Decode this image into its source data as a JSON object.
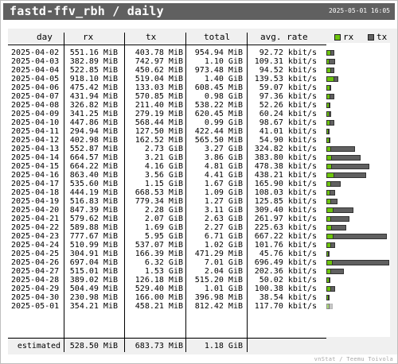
{
  "header": {
    "title": "fastd-ffv_rbh / daily",
    "timestamp": "2025-05-01 16:05"
  },
  "columns": {
    "day": "day",
    "rx": "rx",
    "tx": "tx",
    "total": "total",
    "rate": "avg. rate"
  },
  "legend": {
    "rx_label": "rx",
    "tx_label": "tx",
    "rx_color": "#6cc40c",
    "tx_color": "#606060"
  },
  "rows": [
    {
      "day": "2025-04-02",
      "rx": "551.16 MiB",
      "tx": "403.78 MiB",
      "total": "954.94 MiB",
      "rate": "92.72 kbit/s",
      "rx_mib": 551.16,
      "tx_mib": 403.78
    },
    {
      "day": "2025-04-03",
      "rx": "382.89 MiB",
      "tx": "742.97 MiB",
      "total": "1.10 GiB",
      "rate": "109.31 kbit/s",
      "rx_mib": 382.89,
      "tx_mib": 742.97
    },
    {
      "day": "2025-04-04",
      "rx": "522.85 MiB",
      "tx": "450.62 MiB",
      "total": "973.48 MiB",
      "rate": "94.52 kbit/s",
      "rx_mib": 522.85,
      "tx_mib": 450.62
    },
    {
      "day": "2025-04-05",
      "rx": "918.10 MiB",
      "tx": "519.04 MiB",
      "total": "1.40 GiB",
      "rate": "139.53 kbit/s",
      "rx_mib": 918.1,
      "tx_mib": 519.04
    },
    {
      "day": "2025-04-06",
      "rx": "475.42 MiB",
      "tx": "133.03 MiB",
      "total": "608.45 MiB",
      "rate": "59.07 kbit/s",
      "rx_mib": 475.42,
      "tx_mib": 133.03
    },
    {
      "day": "2025-04-07",
      "rx": "431.94 MiB",
      "tx": "570.85 MiB",
      "total": "0.98 GiB",
      "rate": "97.36 kbit/s",
      "rx_mib": 431.94,
      "tx_mib": 570.85
    },
    {
      "day": "2025-04-08",
      "rx": "326.82 MiB",
      "tx": "211.40 MiB",
      "total": "538.22 MiB",
      "rate": "52.26 kbit/s",
      "rx_mib": 326.82,
      "tx_mib": 211.4
    },
    {
      "day": "2025-04-09",
      "rx": "341.25 MiB",
      "tx": "279.19 MiB",
      "total": "620.45 MiB",
      "rate": "60.24 kbit/s",
      "rx_mib": 341.25,
      "tx_mib": 279.19
    },
    {
      "day": "2025-04-10",
      "rx": "447.86 MiB",
      "tx": "568.44 MiB",
      "total": "0.99 GiB",
      "rate": "98.67 kbit/s",
      "rx_mib": 447.86,
      "tx_mib": 568.44
    },
    {
      "day": "2025-04-11",
      "rx": "294.94 MiB",
      "tx": "127.50 MiB",
      "total": "422.44 MiB",
      "rate": "41.01 kbit/s",
      "rx_mib": 294.94,
      "tx_mib": 127.5
    },
    {
      "day": "2025-04-12",
      "rx": "402.98 MiB",
      "tx": "162.52 MiB",
      "total": "565.50 MiB",
      "rate": "54.90 kbit/s",
      "rx_mib": 402.98,
      "tx_mib": 162.52
    },
    {
      "day": "2025-04-13",
      "rx": "552.87 MiB",
      "tx": "2.73 GiB",
      "total": "3.27 GiB",
      "rate": "324.82 kbit/s",
      "rx_mib": 552.87,
      "tx_mib": 2795.5
    },
    {
      "day": "2025-04-14",
      "rx": "664.57 MiB",
      "tx": "3.21 GiB",
      "total": "3.86 GiB",
      "rate": "383.80 kbit/s",
      "rx_mib": 664.57,
      "tx_mib": 3287.0
    },
    {
      "day": "2025-04-15",
      "rx": "664.22 MiB",
      "tx": "4.16 GiB",
      "total": "4.81 GiB",
      "rate": "478.38 kbit/s",
      "rx_mib": 664.22,
      "tx_mib": 4259.8
    },
    {
      "day": "2025-04-16",
      "rx": "863.40 MiB",
      "tx": "3.56 GiB",
      "total": "4.41 GiB",
      "rate": "438.21 kbit/s",
      "rx_mib": 863.4,
      "tx_mib": 3645.4
    },
    {
      "day": "2025-04-17",
      "rx": "535.60 MiB",
      "tx": "1.15 GiB",
      "total": "1.67 GiB",
      "rate": "165.90 kbit/s",
      "rx_mib": 535.6,
      "tx_mib": 1177.6
    },
    {
      "day": "2025-04-18",
      "rx": "444.19 MiB",
      "tx": "668.53 MiB",
      "total": "1.09 GiB",
      "rate": "108.03 kbit/s",
      "rx_mib": 444.19,
      "tx_mib": 668.53
    },
    {
      "day": "2025-04-19",
      "rx": "516.83 MiB",
      "tx": "779.34 MiB",
      "total": "1.27 GiB",
      "rate": "125.85 kbit/s",
      "rx_mib": 516.83,
      "tx_mib": 779.34
    },
    {
      "day": "2025-04-20",
      "rx": "847.39 MiB",
      "tx": "2.28 GiB",
      "total": "3.11 GiB",
      "rate": "309.40 kbit/s",
      "rx_mib": 847.39,
      "tx_mib": 2334.7
    },
    {
      "day": "2025-04-21",
      "rx": "579.62 MiB",
      "tx": "2.07 GiB",
      "total": "2.63 GiB",
      "rate": "261.97 kbit/s",
      "rx_mib": 579.62,
      "tx_mib": 2119.7
    },
    {
      "day": "2025-04-22",
      "rx": "589.88 MiB",
      "tx": "1.69 GiB",
      "total": "2.27 GiB",
      "rate": "225.63 kbit/s",
      "rx_mib": 589.88,
      "tx_mib": 1730.6
    },
    {
      "day": "2025-04-23",
      "rx": "777.67 MiB",
      "tx": "5.95 GiB",
      "total": "6.71 GiB",
      "rate": "667.22 kbit/s",
      "rx_mib": 777.67,
      "tx_mib": 6092.8
    },
    {
      "day": "2025-04-24",
      "rx": "510.99 MiB",
      "tx": "537.07 MiB",
      "total": "1.02 GiB",
      "rate": "101.76 kbit/s",
      "rx_mib": 510.99,
      "tx_mib": 537.07
    },
    {
      "day": "2025-04-25",
      "rx": "304.91 MiB",
      "tx": "166.39 MiB",
      "total": "471.29 MiB",
      "rate": "45.76 kbit/s",
      "rx_mib": 304.91,
      "tx_mib": 166.39
    },
    {
      "day": "2025-04-26",
      "rx": "697.04 MiB",
      "tx": "6.32 GiB",
      "total": "7.01 GiB",
      "rate": "696.49 kbit/s",
      "rx_mib": 697.04,
      "tx_mib": 6471.7
    },
    {
      "day": "2025-04-27",
      "rx": "515.01 MiB",
      "tx": "1.53 GiB",
      "total": "2.04 GiB",
      "rate": "202.36 kbit/s",
      "rx_mib": 515.01,
      "tx_mib": 1566.7
    },
    {
      "day": "2025-04-28",
      "rx": "389.02 MiB",
      "tx": "126.18 MiB",
      "total": "515.20 MiB",
      "rate": "50.02 kbit/s",
      "rx_mib": 389.02,
      "tx_mib": 126.18
    },
    {
      "day": "2025-04-29",
      "rx": "504.49 MiB",
      "tx": "529.40 MiB",
      "total": "1.01 GiB",
      "rate": "100.38 kbit/s",
      "rx_mib": 504.49,
      "tx_mib": 529.4
    },
    {
      "day": "2025-04-30",
      "rx": "230.98 MiB",
      "tx": "166.00 MiB",
      "total": "396.98 MiB",
      "rate": "38.54 kbit/s",
      "rx_mib": 230.98,
      "tx_mib": 166.0
    },
    {
      "day": "2025-05-01",
      "rx": "354.21 MiB",
      "tx": "458.21 MiB",
      "total": "812.42 MiB",
      "rate": "117.70 kbit/s",
      "rx_mib": 354.21,
      "tx_mib": 458.21,
      "partial": true
    }
  ],
  "estimated": {
    "label": "estimated",
    "rx": "528.50 MiB",
    "tx": "683.73 MiB",
    "total": "1.18 GiB"
  },
  "footer": "vnStat / Teemu Toivola"
}
